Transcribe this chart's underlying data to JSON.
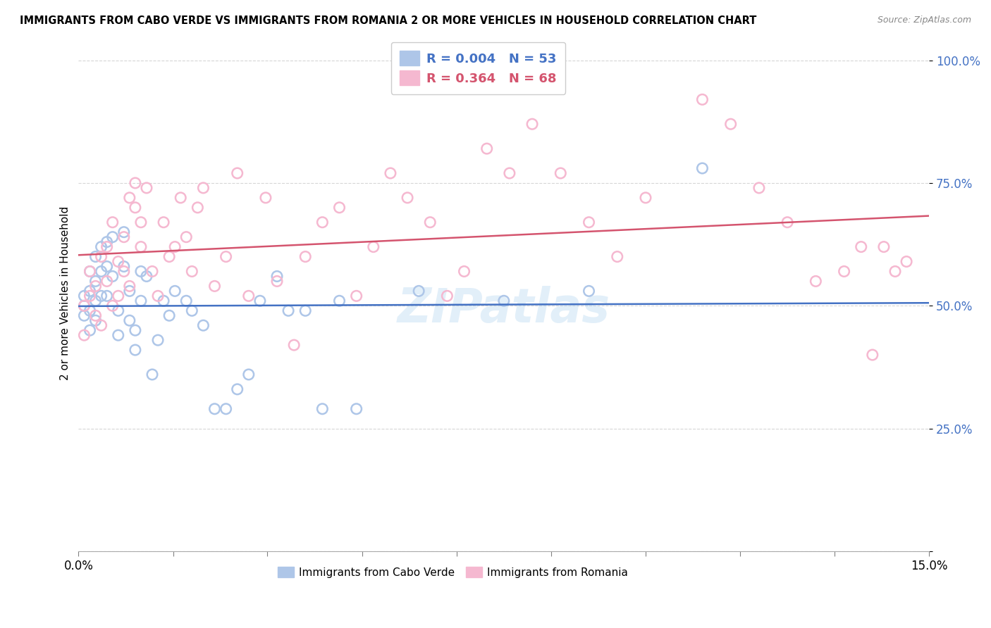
{
  "title": "IMMIGRANTS FROM CABO VERDE VS IMMIGRANTS FROM ROMANIA 2 OR MORE VEHICLES IN HOUSEHOLD CORRELATION CHART",
  "source": "Source: ZipAtlas.com",
  "ylabel": "2 or more Vehicles in Household",
  "xmin": 0.0,
  "xmax": 0.15,
  "ymin": 0.0,
  "ymax": 1.05,
  "yticks": [
    0.0,
    0.25,
    0.5,
    0.75,
    1.0
  ],
  "ytick_labels": [
    "",
    "25.0%",
    "50.0%",
    "75.0%",
    "100.0%"
  ],
  "xticks": [
    0.0,
    0.0167,
    0.0333,
    0.05,
    0.0667,
    0.0833,
    0.1,
    0.1167,
    0.1333,
    0.15
  ],
  "xtick_labels_show": {
    "0.0": "0.0%",
    "0.15": "15.0%"
  },
  "cabo_verde_R": 0.004,
  "cabo_verde_N": 53,
  "romania_R": 0.364,
  "romania_N": 68,
  "cabo_verde_color": "#aec6e8",
  "romania_color": "#f5b8d0",
  "cabo_verde_edge": "#7aadd4",
  "romania_edge": "#e8829e",
  "cabo_verde_line_color": "#4472c4",
  "romania_line_color": "#d4546e",
  "tick_label_color": "#4472c4",
  "legend_label_cabo": "Immigrants from Cabo Verde",
  "legend_label_romania": "Immigrants from Romania",
  "cabo_verde_x": [
    0.001,
    0.001,
    0.001,
    0.002,
    0.002,
    0.002,
    0.002,
    0.003,
    0.003,
    0.003,
    0.003,
    0.004,
    0.004,
    0.004,
    0.005,
    0.005,
    0.005,
    0.006,
    0.006,
    0.007,
    0.007,
    0.008,
    0.008,
    0.009,
    0.009,
    0.01,
    0.01,
    0.011,
    0.011,
    0.012,
    0.013,
    0.014,
    0.015,
    0.016,
    0.017,
    0.019,
    0.02,
    0.022,
    0.024,
    0.026,
    0.028,
    0.03,
    0.032,
    0.035,
    0.037,
    0.04,
    0.043,
    0.046,
    0.049,
    0.06,
    0.075,
    0.09,
    0.11
  ],
  "cabo_verde_y": [
    0.52,
    0.5,
    0.48,
    0.57,
    0.53,
    0.49,
    0.45,
    0.6,
    0.55,
    0.51,
    0.47,
    0.62,
    0.57,
    0.52,
    0.63,
    0.58,
    0.52,
    0.64,
    0.56,
    0.49,
    0.44,
    0.65,
    0.58,
    0.53,
    0.47,
    0.45,
    0.41,
    0.57,
    0.51,
    0.56,
    0.36,
    0.43,
    0.51,
    0.48,
    0.53,
    0.51,
    0.49,
    0.46,
    0.29,
    0.29,
    0.33,
    0.36,
    0.51,
    0.56,
    0.49,
    0.49,
    0.29,
    0.51,
    0.29,
    0.53,
    0.51,
    0.53,
    0.78
  ],
  "romania_x": [
    0.001,
    0.001,
    0.002,
    0.002,
    0.003,
    0.003,
    0.004,
    0.004,
    0.005,
    0.005,
    0.006,
    0.006,
    0.007,
    0.007,
    0.008,
    0.008,
    0.009,
    0.009,
    0.01,
    0.01,
    0.011,
    0.011,
    0.012,
    0.013,
    0.014,
    0.015,
    0.016,
    0.017,
    0.018,
    0.019,
    0.02,
    0.021,
    0.022,
    0.024,
    0.026,
    0.028,
    0.03,
    0.033,
    0.035,
    0.038,
    0.04,
    0.043,
    0.046,
    0.049,
    0.052,
    0.055,
    0.058,
    0.062,
    0.065,
    0.068,
    0.072,
    0.076,
    0.08,
    0.085,
    0.09,
    0.095,
    0.1,
    0.11,
    0.115,
    0.12,
    0.125,
    0.13,
    0.135,
    0.138,
    0.14,
    0.142,
    0.144,
    0.146
  ],
  "romania_y": [
    0.5,
    0.44,
    0.52,
    0.57,
    0.48,
    0.54,
    0.6,
    0.46,
    0.62,
    0.55,
    0.5,
    0.67,
    0.52,
    0.59,
    0.64,
    0.57,
    0.72,
    0.54,
    0.7,
    0.75,
    0.67,
    0.62,
    0.74,
    0.57,
    0.52,
    0.67,
    0.6,
    0.62,
    0.72,
    0.64,
    0.57,
    0.7,
    0.74,
    0.54,
    0.6,
    0.77,
    0.52,
    0.72,
    0.55,
    0.42,
    0.6,
    0.67,
    0.7,
    0.52,
    0.62,
    0.77,
    0.72,
    0.67,
    0.52,
    0.57,
    0.82,
    0.77,
    0.87,
    0.77,
    0.67,
    0.6,
    0.72,
    0.92,
    0.87,
    0.74,
    0.67,
    0.55,
    0.57,
    0.62,
    0.4,
    0.62,
    0.57,
    0.59
  ]
}
